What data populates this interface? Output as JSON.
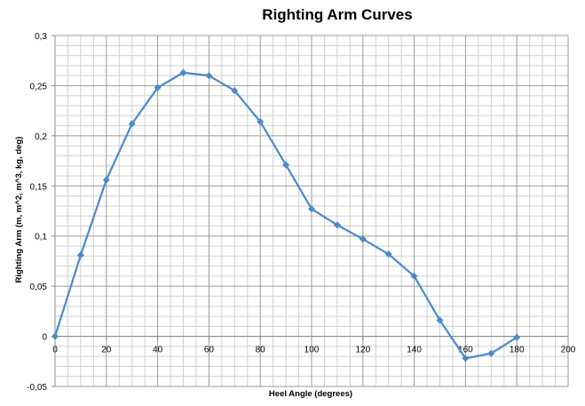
{
  "chart_data": {
    "type": "line",
    "title": "Righting Arm Curves",
    "xlabel": "Heel Angle (degrees)",
    "ylabel": "Righting Arm (m, m^2, m^3, kg, deg)",
    "xlim": [
      0,
      200
    ],
    "ylim": [
      -0.05,
      0.3
    ],
    "x_ticks": [
      0,
      20,
      40,
      60,
      80,
      100,
      120,
      140,
      160,
      180,
      200
    ],
    "x_tick_labels": [
      "0",
      "20",
      "40",
      "60",
      "80",
      "100",
      "120",
      "140",
      "160",
      "180",
      "200"
    ],
    "y_ticks": [
      -0.05,
      0,
      0.05,
      0.1,
      0.15,
      0.2,
      0.25,
      0.3
    ],
    "y_tick_labels": [
      "-0,05",
      "0",
      "0,05",
      "0,1",
      "0,15",
      "0,2",
      "0,25",
      "0,3"
    ],
    "grid": true,
    "series": [
      {
        "color": "#4a8ac9",
        "marker": "diamond",
        "x": [
          0,
          10,
          20,
          30,
          40,
          50,
          60,
          70,
          80,
          90,
          100,
          110,
          120,
          130,
          140,
          150,
          160,
          170,
          180
        ],
        "y": [
          0,
          0.081,
          0.156,
          0.212,
          0.248,
          0.263,
          0.26,
          0.245,
          0.214,
          0.171,
          0.127,
          0.111,
          0.097,
          0.082,
          0.06,
          0.016,
          -0.022,
          -0.017,
          -0.001
        ]
      }
    ]
  }
}
